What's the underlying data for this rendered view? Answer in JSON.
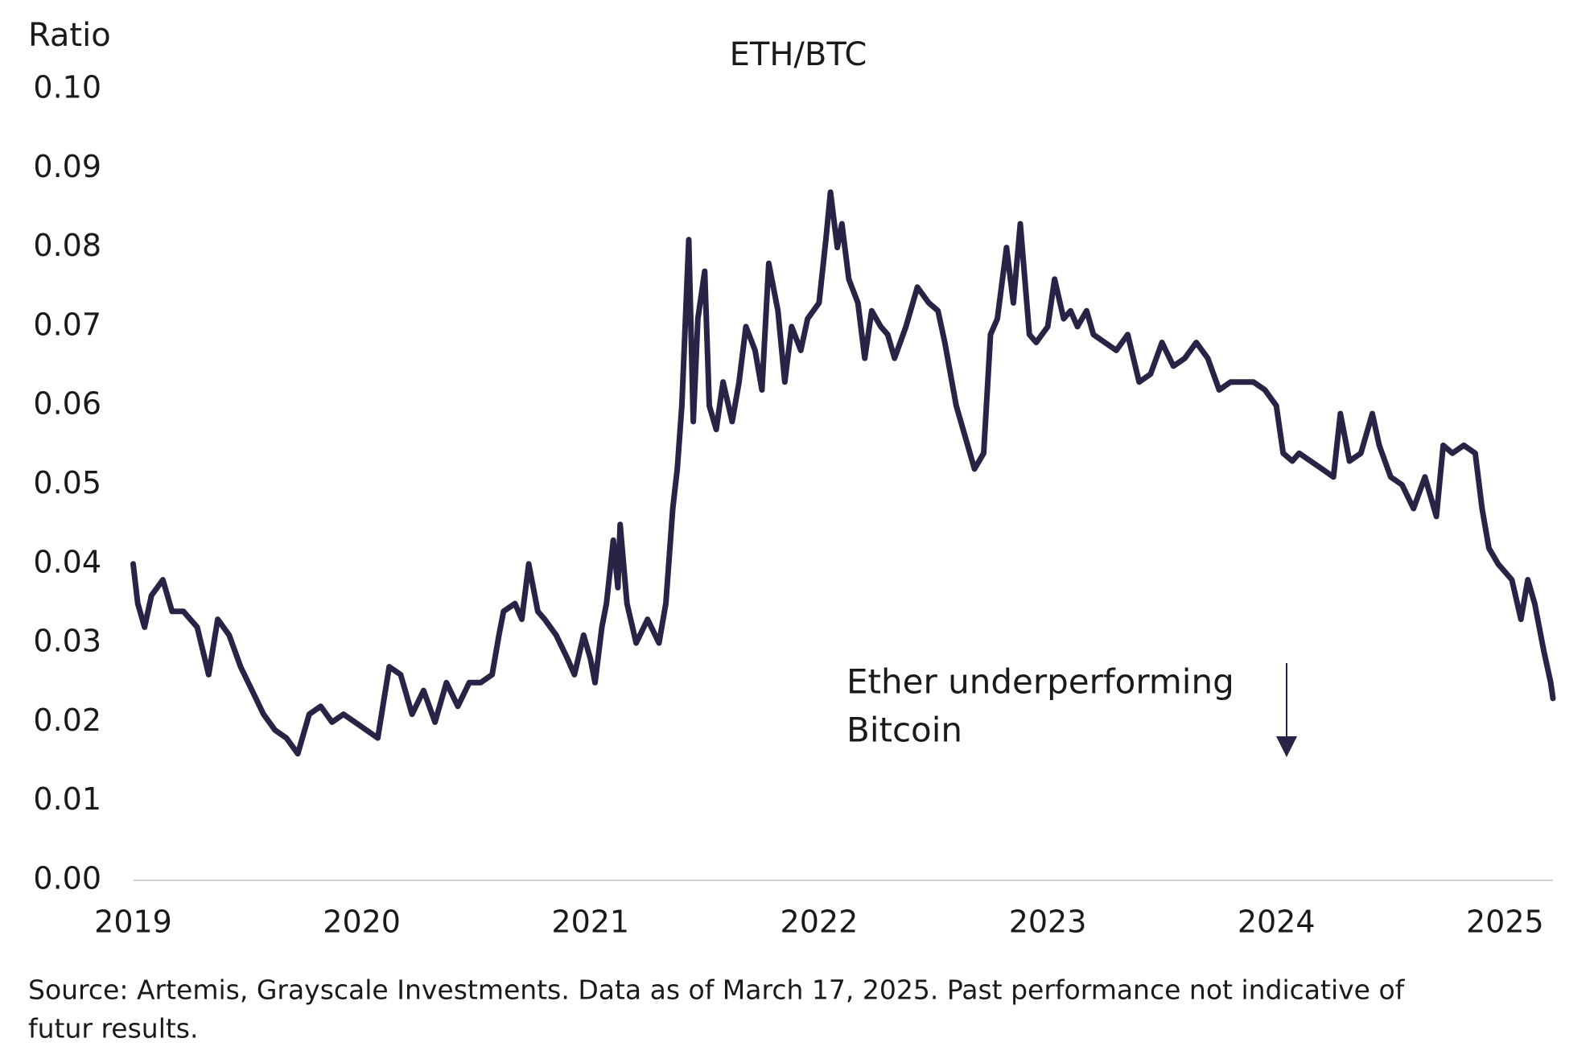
{
  "chart_data": {
    "type": "line",
    "title": "ETH/BTC",
    "y_axis_label": "Ratio",
    "x": [
      2019.0,
      2019.02,
      2019.05,
      2019.08,
      2019.13,
      2019.17,
      2019.22,
      2019.28,
      2019.33,
      2019.37,
      2019.42,
      2019.47,
      2019.52,
      2019.57,
      2019.62,
      2019.67,
      2019.72,
      2019.77,
      2019.82,
      2019.87,
      2019.92,
      2019.97,
      2020.02,
      2020.07,
      2020.12,
      2020.17,
      2020.22,
      2020.27,
      2020.32,
      2020.37,
      2020.42,
      2020.47,
      2020.52,
      2020.57,
      2020.6,
      2020.62,
      2020.67,
      2020.7,
      2020.73,
      2020.77,
      2020.8,
      2020.85,
      2020.9,
      2020.93,
      2020.97,
      2021.0,
      2021.02,
      2021.05,
      2021.07,
      2021.1,
      2021.12,
      2021.13,
      2021.16,
      2021.2,
      2021.25,
      2021.3,
      2021.33,
      2021.36,
      2021.38,
      2021.4,
      2021.43,
      2021.45,
      2021.47,
      2021.5,
      2021.52,
      2021.55,
      2021.58,
      2021.62,
      2021.65,
      2021.68,
      2021.72,
      2021.75,
      2021.78,
      2021.82,
      2021.85,
      2021.88,
      2021.92,
      2021.95,
      2022.0,
      2022.03,
      2022.05,
      2022.08,
      2022.1,
      2022.13,
      2022.17,
      2022.2,
      2022.23,
      2022.27,
      2022.3,
      2022.33,
      2022.38,
      2022.43,
      2022.48,
      2022.52,
      2022.55,
      2022.6,
      2022.65,
      2022.68,
      2022.72,
      2022.75,
      2022.78,
      2022.82,
      2022.85,
      2022.88,
      2022.92,
      2022.95,
      2023.0,
      2023.03,
      2023.07,
      2023.1,
      2023.13,
      2023.17,
      2023.2,
      2023.25,
      2023.3,
      2023.35,
      2023.4,
      2023.45,
      2023.5,
      2023.55,
      2023.6,
      2023.65,
      2023.7,
      2023.75,
      2023.8,
      2023.85,
      2023.9,
      2023.95,
      2024.0,
      2024.03,
      2024.07,
      2024.1,
      2024.15,
      2024.2,
      2024.25,
      2024.28,
      2024.32,
      2024.37,
      2024.42,
      2024.45,
      2024.5,
      2024.55,
      2024.6,
      2024.65,
      2024.7,
      2024.73,
      2024.77,
      2024.82,
      2024.87,
      2024.9,
      2024.93,
      2024.97,
      2025.0,
      2025.03,
      2025.07,
      2025.1,
      2025.13,
      2025.17,
      2025.2,
      2025.21
    ],
    "series": [
      {
        "name": "ETH/BTC",
        "color": "#2a2346",
        "values": [
          0.04,
          0.035,
          0.032,
          0.036,
          0.038,
          0.034,
          0.034,
          0.032,
          0.026,
          0.033,
          0.031,
          0.027,
          0.024,
          0.021,
          0.019,
          0.018,
          0.016,
          0.021,
          0.022,
          0.02,
          0.021,
          0.02,
          0.019,
          0.018,
          0.027,
          0.026,
          0.021,
          0.024,
          0.02,
          0.025,
          0.022,
          0.025,
          0.025,
          0.026,
          0.031,
          0.034,
          0.035,
          0.033,
          0.04,
          0.034,
          0.033,
          0.031,
          0.028,
          0.026,
          0.031,
          0.028,
          0.025,
          0.032,
          0.035,
          0.043,
          0.037,
          0.045,
          0.035,
          0.03,
          0.033,
          0.03,
          0.035,
          0.047,
          0.052,
          0.06,
          0.081,
          0.058,
          0.071,
          0.077,
          0.06,
          0.057,
          0.063,
          0.058,
          0.063,
          0.07,
          0.067,
          0.062,
          0.078,
          0.072,
          0.063,
          0.07,
          0.067,
          0.071,
          0.073,
          0.081,
          0.087,
          0.08,
          0.083,
          0.076,
          0.073,
          0.066,
          0.072,
          0.07,
          0.069,
          0.066,
          0.07,
          0.075,
          0.073,
          0.072,
          0.068,
          0.06,
          0.055,
          0.052,
          0.054,
          0.069,
          0.071,
          0.08,
          0.073,
          0.083,
          0.069,
          0.068,
          0.07,
          0.076,
          0.071,
          0.072,
          0.07,
          0.072,
          0.069,
          0.068,
          0.067,
          0.069,
          0.063,
          0.064,
          0.068,
          0.065,
          0.066,
          0.068,
          0.066,
          0.062,
          0.063,
          0.063,
          0.063,
          0.062,
          0.06,
          0.054,
          0.053,
          0.054,
          0.053,
          0.052,
          0.051,
          0.059,
          0.053,
          0.054,
          0.059,
          0.055,
          0.051,
          0.05,
          0.047,
          0.051,
          0.046,
          0.055,
          0.054,
          0.055,
          0.054,
          0.047,
          0.042,
          0.04,
          0.039,
          0.038,
          0.033,
          0.038,
          0.035,
          0.029,
          0.025,
          0.023
        ]
      }
    ],
    "xlim": [
      2019,
      2025.21
    ],
    "xticks": [
      2019,
      2020,
      2021,
      2022,
      2023,
      2024,
      2025
    ],
    "ylim": [
      0,
      0.1
    ],
    "yticks": [
      {
        "value": 0,
        "label": "0.00"
      },
      {
        "value": 0.01,
        "label": "0.01"
      },
      {
        "value": 0.02,
        "label": "0.02"
      },
      {
        "value": 0.03,
        "label": "0.03"
      },
      {
        "value": 0.04,
        "label": "0.04"
      },
      {
        "value": 0.05,
        "label": "0.05"
      },
      {
        "value": 0.06,
        "label": "0.06"
      },
      {
        "value": 0.07,
        "label": "0.07"
      },
      {
        "value": 0.08,
        "label": "0.08"
      },
      {
        "value": 0.09,
        "label": "0.09"
      },
      {
        "value": 0.1,
        "label": "0.10"
      }
    ],
    "grid": false,
    "annotation": [
      "Ether underperforming",
      "Bitcoin"
    ],
    "source": [
      "Source: Artemis, Grayscale Investments. Data as of March 17, 2025. Past performance not indicative of",
      "futur results."
    ]
  }
}
